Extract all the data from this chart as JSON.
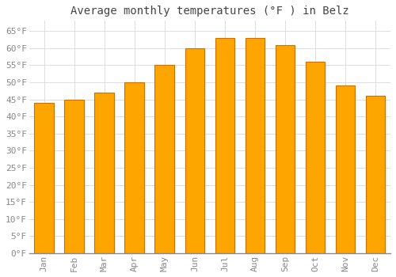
{
  "title": "Average monthly temperatures (°F ) in Belz",
  "months": [
    "Jan",
    "Feb",
    "Mar",
    "Apr",
    "May",
    "Jun",
    "Jul",
    "Aug",
    "Sep",
    "Oct",
    "Nov",
    "Dec"
  ],
  "values": [
    44,
    45,
    47,
    50,
    55,
    60,
    63,
    63,
    61,
    56,
    49,
    46
  ],
  "bar_color": "#FFA500",
  "bar_edge_color": "#CC7000",
  "background_color": "#FFFFFF",
  "grid_color": "#DDDDDD",
  "ylim": [
    0,
    68
  ],
  "yticks": [
    0,
    5,
    10,
    15,
    20,
    25,
    30,
    35,
    40,
    45,
    50,
    55,
    60,
    65
  ],
  "title_fontsize": 10,
  "tick_fontsize": 8,
  "tick_font_color": "#888888",
  "title_color": "#444444"
}
